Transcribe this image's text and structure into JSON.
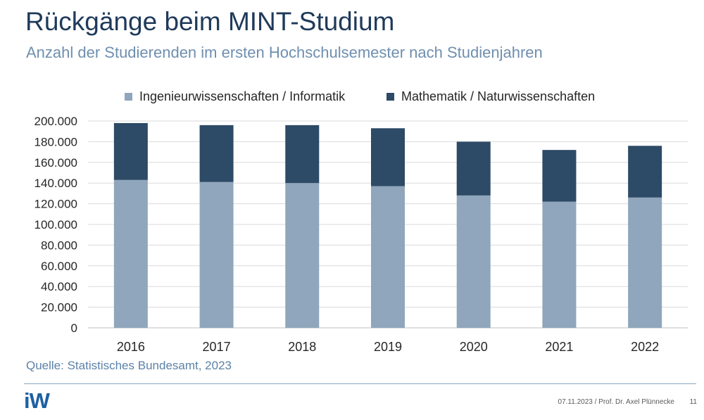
{
  "header": {
    "title": "Rückgänge beim MINT-Studium",
    "subtitle": "Anzahl der Studierenden im ersten Hochschulsemester nach Studienjahren"
  },
  "chart_data": {
    "type": "bar",
    "stacked": true,
    "categories": [
      "2016",
      "2017",
      "2018",
      "2019",
      "2020",
      "2021",
      "2022"
    ],
    "series": [
      {
        "name": "Ingenieurwissenschaften / Informatik",
        "color": "#8fa6bc",
        "values": [
          143000,
          141000,
          140000,
          137000,
          128000,
          122000,
          126000
        ]
      },
      {
        "name": "Mathematik / Naturwissenschaften",
        "color": "#2d4a66",
        "values": [
          55000,
          55000,
          56000,
          56000,
          52000,
          50000,
          50000
        ]
      }
    ],
    "ylim": [
      0,
      200000
    ],
    "yticks": [
      "0",
      "20.000",
      "40.000",
      "60.000",
      "80.000",
      "100.000",
      "120.000",
      "140.000",
      "160.000",
      "180.000",
      "200.000"
    ],
    "grid": true,
    "legend_position": "top"
  },
  "source": "Quelle: Statistisches Bundesamt, 2023",
  "footer": {
    "logo": "iW",
    "text": "07.11.2023 / Prof. Dr. Axel Plünnecke",
    "page": "11"
  },
  "colors": {
    "title": "#1f3a5a",
    "subtitle": "#6f8fb0",
    "source": "#5b82a8"
  }
}
